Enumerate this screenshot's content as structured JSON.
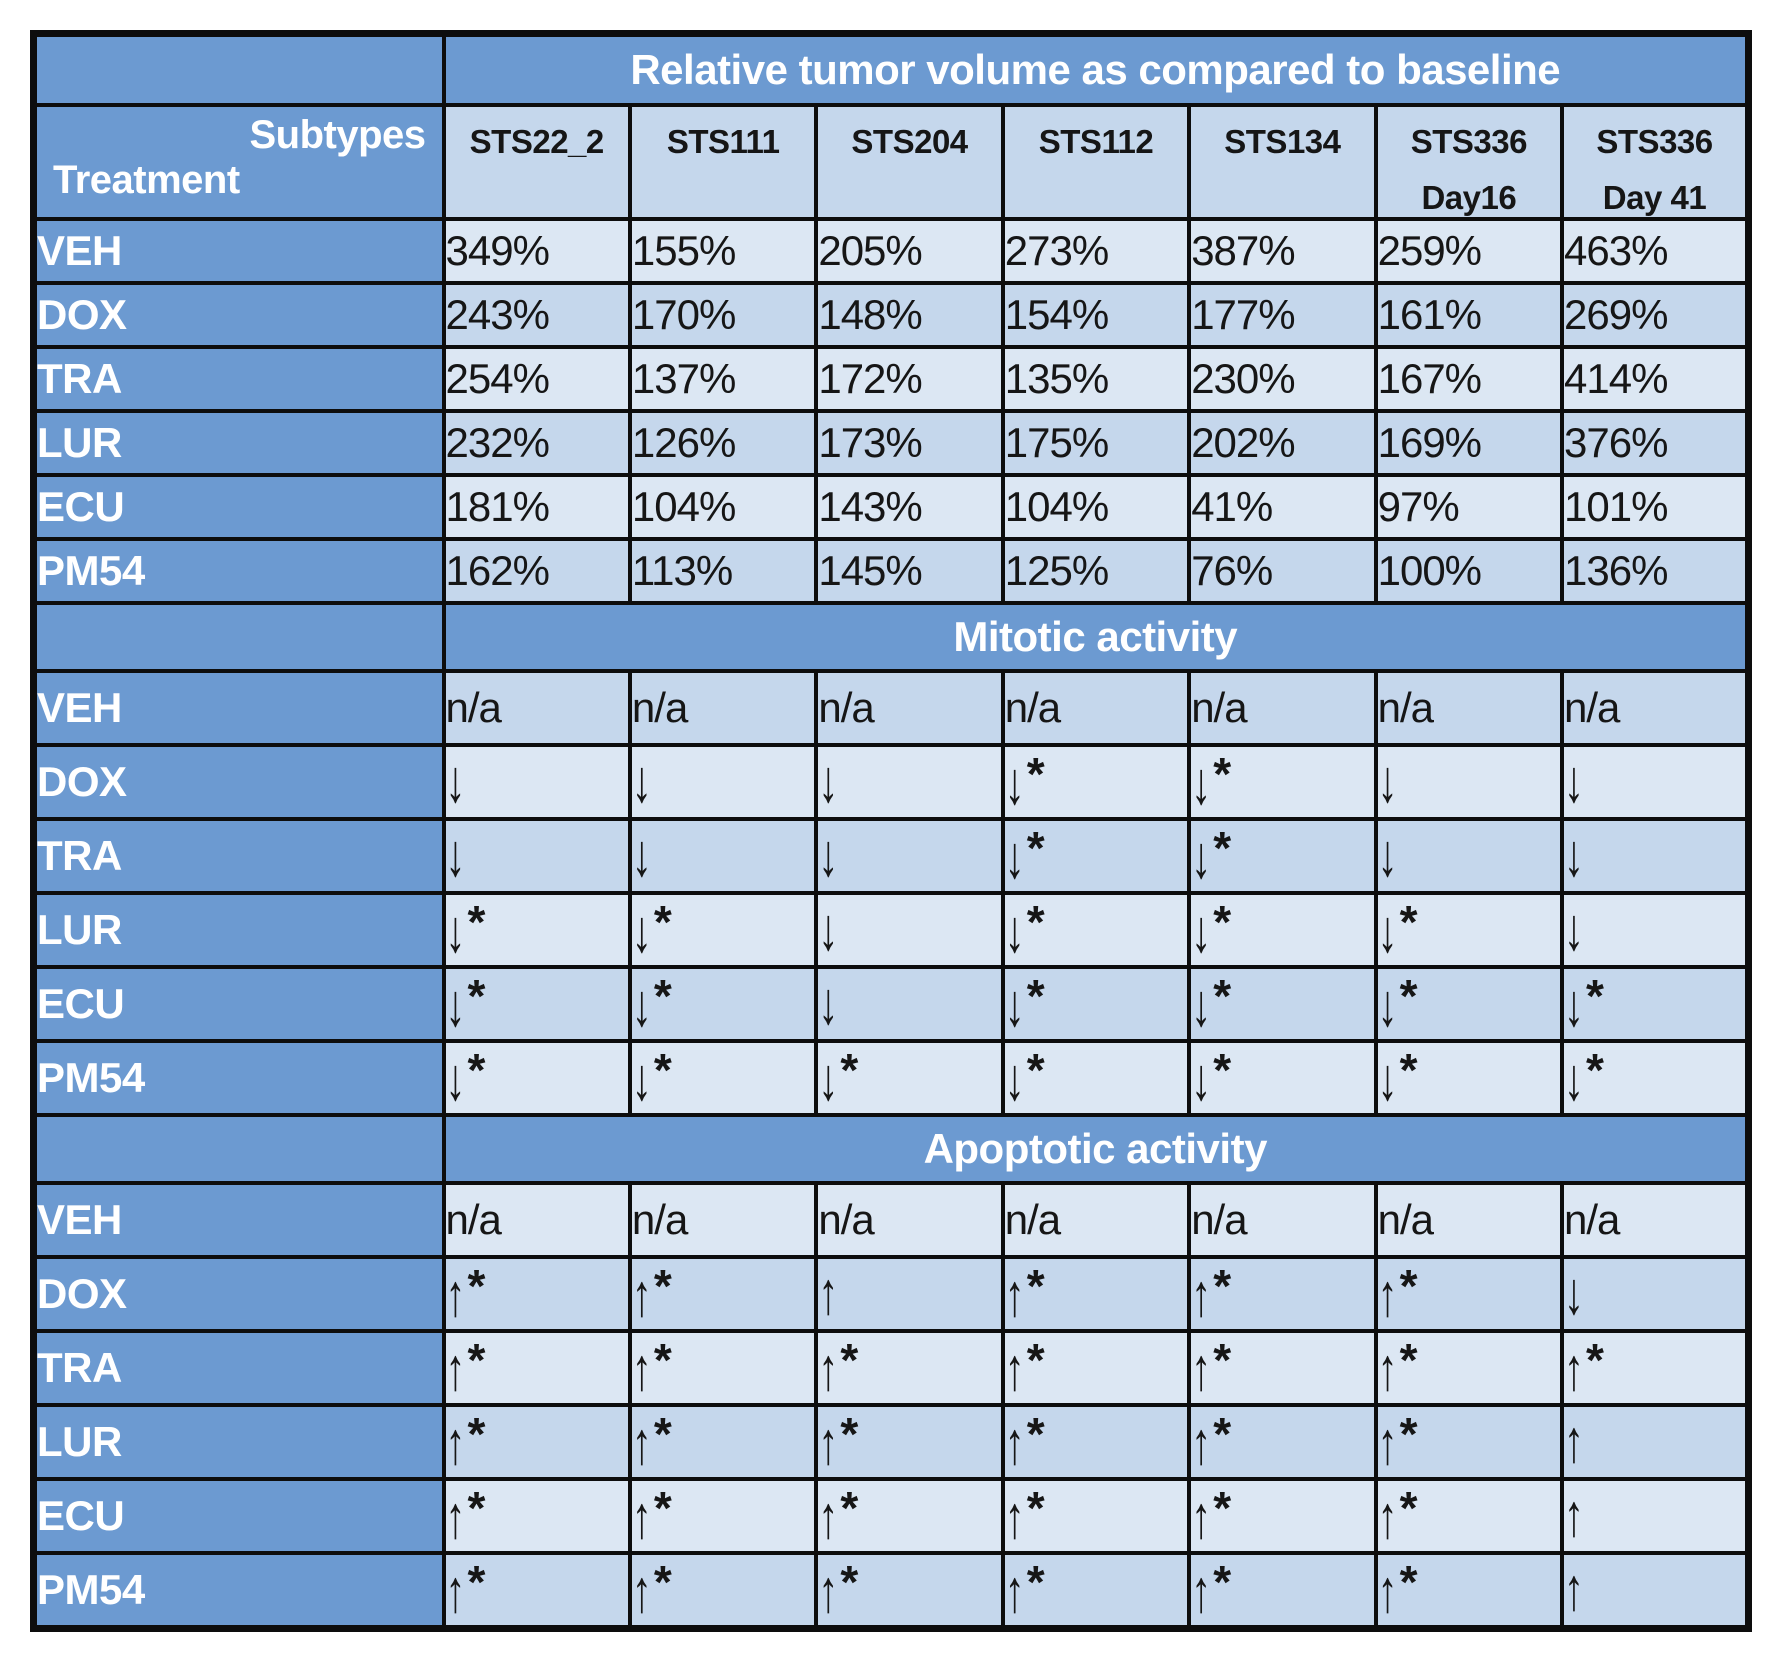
{
  "chart_data": {
    "type": "table",
    "corner": {
      "subtypes_label": "Subtypes",
      "treatment_label": "Treatment"
    },
    "columns": [
      {
        "id": "STS22_2",
        "line1": "STS22_2",
        "line2": ""
      },
      {
        "id": "STS111",
        "line1": "STS111",
        "line2": ""
      },
      {
        "id": "STS204",
        "line1": "STS204",
        "line2": ""
      },
      {
        "id": "STS112",
        "line1": "STS112",
        "line2": ""
      },
      {
        "id": "STS134",
        "line1": "STS134",
        "line2": ""
      },
      {
        "id": "STS336 Day16",
        "line1": "STS336",
        "line2": "Day16"
      },
      {
        "id": "STS336 Day 41",
        "line1": "STS336",
        "line2": "Day 41"
      }
    ],
    "sections": [
      {
        "title": "Relative tumor volume as compared to baseline",
        "rows": [
          {
            "treatment": "VEH",
            "values": [
              "349%",
              "155%",
              "205%",
              "273%",
              "387%",
              "259%",
              "463%"
            ]
          },
          {
            "treatment": "DOX",
            "values": [
              "243%",
              "170%",
              "148%",
              "154%",
              "177%",
              "161%",
              "269%"
            ]
          },
          {
            "treatment": "TRA",
            "values": [
              "254%",
              "137%",
              "172%",
              "135%",
              "230%",
              "167%",
              "414%"
            ]
          },
          {
            "treatment": "LUR",
            "values": [
              "232%",
              "126%",
              "173%",
              "175%",
              "202%",
              "169%",
              "376%"
            ]
          },
          {
            "treatment": "ECU",
            "values": [
              "181%",
              "104%",
              "143%",
              "104%",
              "41%",
              "97%",
              "101%"
            ]
          },
          {
            "treatment": "PM54",
            "values": [
              "162%",
              "113%",
              "145%",
              "125%",
              "76%",
              "100%",
              "136%"
            ]
          }
        ]
      },
      {
        "title": "Mitotic activity",
        "rows": [
          {
            "treatment": "VEH",
            "values": [
              "n/a",
              "n/a",
              "n/a",
              "n/a",
              "n/a",
              "n/a",
              "n/a"
            ]
          },
          {
            "treatment": "DOX",
            "values": [
              "↓",
              "↓",
              "↓",
              "↓*",
              "↓*",
              "↓",
              "↓"
            ]
          },
          {
            "treatment": "TRA",
            "values": [
              "↓",
              "↓",
              "↓",
              "↓*",
              "↓*",
              "↓",
              "↓"
            ]
          },
          {
            "treatment": "LUR",
            "values": [
              "↓*",
              "↓*",
              "↓",
              "↓*",
              "↓*",
              "↓*",
              "↓"
            ]
          },
          {
            "treatment": "ECU",
            "values": [
              "↓*",
              "↓*",
              "↓",
              "↓*",
              "↓*",
              "↓*",
              "↓*"
            ]
          },
          {
            "treatment": "PM54",
            "values": [
              "↓*",
              "↓*",
              "↓*",
              "↓*",
              "↓*",
              "↓*",
              "↓*"
            ]
          }
        ]
      },
      {
        "title": "Apoptotic activity",
        "rows": [
          {
            "treatment": "VEH",
            "values": [
              "n/a",
              "n/a",
              "n/a",
              "n/a",
              "n/a",
              "n/a",
              "n/a"
            ]
          },
          {
            "treatment": "DOX",
            "values": [
              "↑*",
              "↑*",
              "↑",
              "↑*",
              "↑*",
              "↑*",
              "↓"
            ]
          },
          {
            "treatment": "TRA",
            "values": [
              "↑*",
              "↑*",
              "↑*",
              "↑*",
              "↑*",
              "↑*",
              "↑*"
            ]
          },
          {
            "treatment": "LUR",
            "values": [
              "↑*",
              "↑*",
              "↑*",
              "↑*",
              "↑*",
              "↑*",
              "↑"
            ]
          },
          {
            "treatment": "ECU",
            "values": [
              "↑*",
              "↑*",
              "↑*",
              "↑*",
              "↑*",
              "↑*",
              "↑"
            ]
          },
          {
            "treatment": "PM54",
            "values": [
              "↑*",
              "↑*",
              "↑*",
              "↑*",
              "↑*",
              "↑*",
              "↑"
            ]
          }
        ]
      }
    ]
  },
  "colors": {
    "header_blue": "#6c9ad1",
    "band_light": "#dce7f3",
    "band_dark": "#c5d7ec",
    "border_black": "#0d0d0d",
    "text_dark": "#161616",
    "text_white": "#ffffff"
  }
}
